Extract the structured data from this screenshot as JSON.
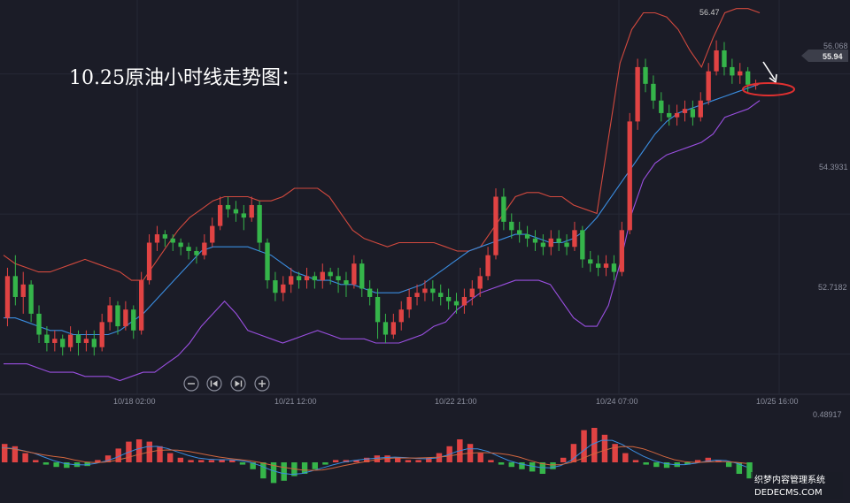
{
  "title": "10.25原油小时线走势图：",
  "colors": {
    "background": "#1b1c27",
    "grid": "#262836",
    "up_candle": "#e04343",
    "down_candle": "#35b54a",
    "ma_mid": "#3a8de0",
    "boll_upper": "#d2493e",
    "boll_lower": "#9a4fe0",
    "annotation": "#e03030",
    "macd_dif": "#3a8de0",
    "macd_dea": "#d2663e"
  },
  "price_axis": {
    "ticks": [
      "56.068",
      "54.3931",
      "52.7182"
    ],
    "current_price": "55.94",
    "high_label": "56.47"
  },
  "time_axis": {
    "ticks": [
      "10/18 02:00",
      "10/21 12:00",
      "10/22 21:00",
      "10/24 07:00",
      "10/25 16:00"
    ]
  },
  "macd_axis": {
    "tick": "0.48917"
  },
  "controls": [
    {
      "name": "zoom-out-button",
      "icon": "minus-circle-icon",
      "glyph": "−"
    },
    {
      "name": "jump-start-button",
      "icon": "skip-back-icon",
      "glyph": "⏮"
    },
    {
      "name": "jump-end-button",
      "icon": "skip-forward-icon",
      "glyph": "⏭"
    },
    {
      "name": "zoom-in-button",
      "icon": "plus-circle-icon",
      "glyph": "+"
    }
  ],
  "watermark": {
    "line1": "织梦内容管理系统",
    "line2": "DEDECMS.COM"
  },
  "chart_data": {
    "type": "candlestick",
    "instrument": "原油",
    "timeframe": "1H",
    "ylim": [
      52.3,
      56.9
    ],
    "candles": [
      [
        53.15,
        53.65,
        53.05,
        53.75
      ],
      [
        53.65,
        53.4,
        53.3,
        53.9
      ],
      [
        53.4,
        53.55,
        53.2,
        53.7
      ],
      [
        53.55,
        53.2,
        53.1,
        53.6
      ],
      [
        53.2,
        52.95,
        52.85,
        53.3
      ],
      [
        52.95,
        52.85,
        52.75,
        53.05
      ],
      [
        52.85,
        52.9,
        52.75,
        53.0
      ],
      [
        52.9,
        52.8,
        52.7,
        52.95
      ],
      [
        52.8,
        52.95,
        52.75,
        53.05
      ],
      [
        52.95,
        52.85,
        52.7,
        53.0
      ],
      [
        52.85,
        52.9,
        52.75,
        53.0
      ],
      [
        52.9,
        52.8,
        52.7,
        53.0
      ],
      [
        52.8,
        53.1,
        52.75,
        53.2
      ],
      [
        53.1,
        53.3,
        53.0,
        53.4
      ],
      [
        53.3,
        53.05,
        52.95,
        53.35
      ],
      [
        53.05,
        53.25,
        53.0,
        53.35
      ],
      [
        53.25,
        53.0,
        52.9,
        53.3
      ],
      [
        53.0,
        53.6,
        52.95,
        53.7
      ],
      [
        53.6,
        54.05,
        53.55,
        54.15
      ],
      [
        54.05,
        54.15,
        53.95,
        54.25
      ],
      [
        54.15,
        54.1,
        54.0,
        54.2
      ],
      [
        54.1,
        54.05,
        53.95,
        54.15
      ],
      [
        54.05,
        54.0,
        53.9,
        54.1
      ],
      [
        54.0,
        53.95,
        53.85,
        54.05
      ],
      [
        53.95,
        53.9,
        53.8,
        54.0
      ],
      [
        53.9,
        54.05,
        53.85,
        54.15
      ],
      [
        54.05,
        54.25,
        54.0,
        54.35
      ],
      [
        54.25,
        54.5,
        54.2,
        54.6
      ],
      [
        54.5,
        54.45,
        54.35,
        54.6
      ],
      [
        54.45,
        54.4,
        54.3,
        54.55
      ],
      [
        54.4,
        54.35,
        54.2,
        54.5
      ],
      [
        54.35,
        54.5,
        54.3,
        54.6
      ],
      [
        54.5,
        54.05,
        53.95,
        54.55
      ],
      [
        54.05,
        53.6,
        53.5,
        54.1
      ],
      [
        53.6,
        53.45,
        53.35,
        53.7
      ],
      [
        53.45,
        53.55,
        53.35,
        53.65
      ],
      [
        53.55,
        53.65,
        53.45,
        53.75
      ],
      [
        53.65,
        53.6,
        53.5,
        53.7
      ],
      [
        53.6,
        53.65,
        53.5,
        53.75
      ],
      [
        53.65,
        53.6,
        53.5,
        53.7
      ],
      [
        53.6,
        53.7,
        53.5,
        53.8
      ],
      [
        53.7,
        53.65,
        53.55,
        53.75
      ],
      [
        53.65,
        53.6,
        53.45,
        53.75
      ],
      [
        53.6,
        53.55,
        53.4,
        53.7
      ],
      [
        53.55,
        53.8,
        53.5,
        53.9
      ],
      [
        53.8,
        53.5,
        53.4,
        53.85
      ],
      [
        53.5,
        53.4,
        53.3,
        53.6
      ],
      [
        53.4,
        53.1,
        52.9,
        53.5
      ],
      [
        53.1,
        52.95,
        52.85,
        53.2
      ],
      [
        52.95,
        53.1,
        52.9,
        53.2
      ],
      [
        53.1,
        53.25,
        53.0,
        53.35
      ],
      [
        53.25,
        53.4,
        53.15,
        53.5
      ],
      [
        53.4,
        53.45,
        53.3,
        53.55
      ],
      [
        53.45,
        53.5,
        53.35,
        53.6
      ],
      [
        53.5,
        53.45,
        53.35,
        53.6
      ],
      [
        53.45,
        53.4,
        53.3,
        53.55
      ],
      [
        53.4,
        53.35,
        53.25,
        53.5
      ],
      [
        53.35,
        53.3,
        53.2,
        53.45
      ],
      [
        53.3,
        53.4,
        53.2,
        53.5
      ],
      [
        53.4,
        53.5,
        53.3,
        53.6
      ],
      [
        53.5,
        53.65,
        53.4,
        53.75
      ],
      [
        53.65,
        53.9,
        53.6,
        54.0
      ],
      [
        53.9,
        54.6,
        53.85,
        54.7
      ],
      [
        54.6,
        54.3,
        54.2,
        54.7
      ],
      [
        54.3,
        54.2,
        54.1,
        54.4
      ],
      [
        54.2,
        54.15,
        54.05,
        54.3
      ],
      [
        54.15,
        54.1,
        54.0,
        54.25
      ],
      [
        54.1,
        54.05,
        53.95,
        54.2
      ],
      [
        54.05,
        54.0,
        53.9,
        54.15
      ],
      [
        54.0,
        54.1,
        53.9,
        54.2
      ],
      [
        54.1,
        54.05,
        53.95,
        54.2
      ],
      [
        54.05,
        54.0,
        53.9,
        54.15
      ],
      [
        54.0,
        54.2,
        53.95,
        54.3
      ],
      [
        54.2,
        53.85,
        53.75,
        54.25
      ],
      [
        53.85,
        53.8,
        53.7,
        53.95
      ],
      [
        53.8,
        53.75,
        53.65,
        53.9
      ],
      [
        53.75,
        53.8,
        53.65,
        53.9
      ],
      [
        53.8,
        53.7,
        53.6,
        53.9
      ],
      [
        53.7,
        54.2,
        53.65,
        54.3
      ],
      [
        54.2,
        55.5,
        54.15,
        55.6
      ],
      [
        55.5,
        56.15,
        55.4,
        56.25
      ],
      [
        56.15,
        55.95,
        55.85,
        56.25
      ],
      [
        55.95,
        55.75,
        55.65,
        56.05
      ],
      [
        55.75,
        55.6,
        55.5,
        55.85
      ],
      [
        55.6,
        55.55,
        55.45,
        55.7
      ],
      [
        55.55,
        55.6,
        55.45,
        55.7
      ],
      [
        55.6,
        55.65,
        55.5,
        55.75
      ],
      [
        55.65,
        55.55,
        55.45,
        55.75
      ],
      [
        55.55,
        55.75,
        55.5,
        55.85
      ],
      [
        55.75,
        56.1,
        55.7,
        56.2
      ],
      [
        56.1,
        56.35,
        56.05,
        56.47
      ],
      [
        56.35,
        56.15,
        56.05,
        56.45
      ],
      [
        56.15,
        56.05,
        55.95,
        56.25
      ],
      [
        56.05,
        56.1,
        55.95,
        56.2
      ],
      [
        56.1,
        55.94,
        55.85,
        56.15
      ],
      [
        55.94,
        55.94,
        55.88,
        56.0
      ]
    ],
    "bollinger": {
      "upper": [
        53.9,
        53.8,
        53.75,
        53.7,
        53.7,
        53.75,
        53.8,
        53.85,
        53.8,
        53.75,
        53.7,
        53.6,
        53.6,
        53.8,
        54.0,
        54.2,
        54.35,
        54.45,
        54.55,
        54.6,
        54.6,
        54.6,
        54.55,
        54.55,
        54.6,
        54.7,
        54.7,
        54.7,
        54.6,
        54.4,
        54.2,
        54.1,
        54.05,
        54.0,
        54.05,
        54.05,
        54.05,
        54.05,
        54.0,
        53.95,
        53.95,
        54.0,
        54.2,
        54.4,
        54.6,
        54.65,
        54.65,
        54.6,
        54.6,
        54.5,
        54.45,
        54.4,
        55.3,
        56.2,
        56.6,
        56.8,
        56.8,
        56.75,
        56.6,
        56.35,
        56.15,
        56.5,
        56.8,
        56.85,
        56.85,
        56.8
      ],
      "mid": [
        53.15,
        53.15,
        53.1,
        53.05,
        53.0,
        53.0,
        52.95,
        52.95,
        52.95,
        52.95,
        53.0,
        53.1,
        53.2,
        53.35,
        53.5,
        53.65,
        53.8,
        53.95,
        54.0,
        54.0,
        54.0,
        54.0,
        53.95,
        53.9,
        53.8,
        53.7,
        53.65,
        53.6,
        53.6,
        53.55,
        53.55,
        53.5,
        53.45,
        53.45,
        53.45,
        53.5,
        53.55,
        53.65,
        53.75,
        53.85,
        53.95,
        54.0,
        54.05,
        54.1,
        54.15,
        54.15,
        54.1,
        54.05,
        54.05,
        54.1,
        54.2,
        54.35,
        54.55,
        54.75,
        54.95,
        55.15,
        55.35,
        55.5,
        55.6,
        55.65,
        55.7,
        55.75,
        55.8,
        55.85,
        55.9,
        55.95
      ],
      "lower": [
        52.6,
        52.6,
        52.6,
        52.55,
        52.5,
        52.5,
        52.5,
        52.45,
        52.45,
        52.45,
        52.4,
        52.45,
        52.5,
        52.5,
        52.6,
        52.7,
        52.85,
        53.05,
        53.2,
        53.35,
        53.2,
        53.0,
        52.95,
        52.9,
        52.85,
        52.9,
        52.95,
        53.0,
        52.95,
        52.9,
        52.9,
        52.9,
        52.85,
        52.85,
        52.85,
        52.9,
        52.95,
        53.05,
        53.1,
        53.25,
        53.35,
        53.45,
        53.5,
        53.55,
        53.6,
        53.6,
        53.6,
        53.55,
        53.35,
        53.15,
        53.05,
        53.05,
        53.3,
        53.8,
        54.4,
        54.8,
        55.0,
        55.1,
        55.15,
        55.2,
        55.25,
        55.35,
        55.55,
        55.6,
        55.65,
        55.75
      ]
    },
    "macd": {
      "histogram": [
        0.4,
        0.35,
        0.2,
        0.05,
        -0.05,
        -0.1,
        -0.12,
        -0.1,
        -0.08,
        0.05,
        0.15,
        0.3,
        0.45,
        0.5,
        0.45,
        0.35,
        0.2,
        0.1,
        0.05,
        0.05,
        0.05,
        0.05,
        0.05,
        -0.05,
        -0.15,
        -0.35,
        -0.45,
        -0.4,
        -0.3,
        -0.25,
        -0.15,
        -0.05,
        0.05,
        0.05,
        0.05,
        0.1,
        0.15,
        0.15,
        0.1,
        0.05,
        0.05,
        0.1,
        0.2,
        0.35,
        0.5,
        0.4,
        0.2,
        0.05,
        -0.05,
        -0.1,
        -0.15,
        -0.2,
        -0.25,
        -0.15,
        0.1,
        0.4,
        0.7,
        0.75,
        0.6,
        0.4,
        0.2,
        0.05,
        -0.05,
        -0.1,
        -0.12,
        -0.1,
        -0.05,
        0.05,
        0.1,
        0.05,
        -0.1,
        -0.25,
        -0.35
      ]
    }
  }
}
